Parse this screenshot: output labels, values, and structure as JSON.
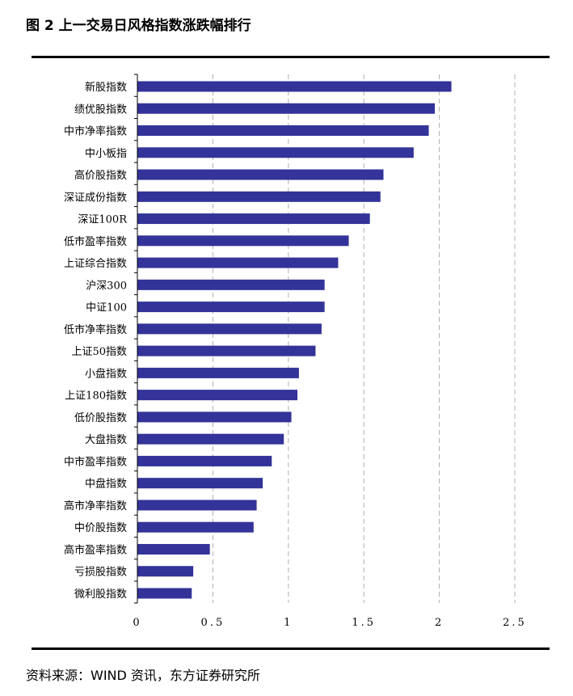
{
  "figure": {
    "title": "图 2  上一交易日风格指数涨跌幅排行",
    "source": "资料来源：WIND 资讯，东方证券研究所"
  },
  "colors": {
    "bar": "#333399",
    "grid": "#b0b0b0",
    "axis": "#000000",
    "rule": "#000000"
  },
  "chart_data": {
    "type": "bar",
    "orientation": "horizontal",
    "categories": [
      "新股指数",
      "绩优股指数",
      "中市净率指数",
      "中小板指",
      "高价股指数",
      "深证成份指数",
      "深证100R",
      "低市盈率指数",
      "上证综合指数",
      "沪深300",
      "中证100",
      "低市净率指数",
      "上证50指数",
      "小盘指数",
      "上证180指数",
      "低价股指数",
      "大盘指数",
      "中市盈率指数",
      "中盘指数",
      "高市净率指数",
      "中价股指数",
      "高市盈率指数",
      "亏损股指数",
      "微利股指数"
    ],
    "values": [
      2.08,
      1.97,
      1.93,
      1.83,
      1.63,
      1.61,
      1.54,
      1.4,
      1.33,
      1.24,
      1.24,
      1.22,
      1.18,
      1.07,
      1.06,
      1.02,
      0.97,
      0.89,
      0.83,
      0.79,
      0.77,
      0.48,
      0.37,
      0.36
    ],
    "xlim": [
      0,
      2.5
    ],
    "xticks": [
      0,
      0.5,
      1,
      1.5,
      2,
      2.5
    ],
    "xtick_labels": [
      "0",
      "0.5",
      "1",
      "1.5",
      "2",
      "2.5"
    ],
    "grid": "vertical dashed",
    "legend": "none",
    "title": "",
    "xlabel": "",
    "ylabel": ""
  }
}
